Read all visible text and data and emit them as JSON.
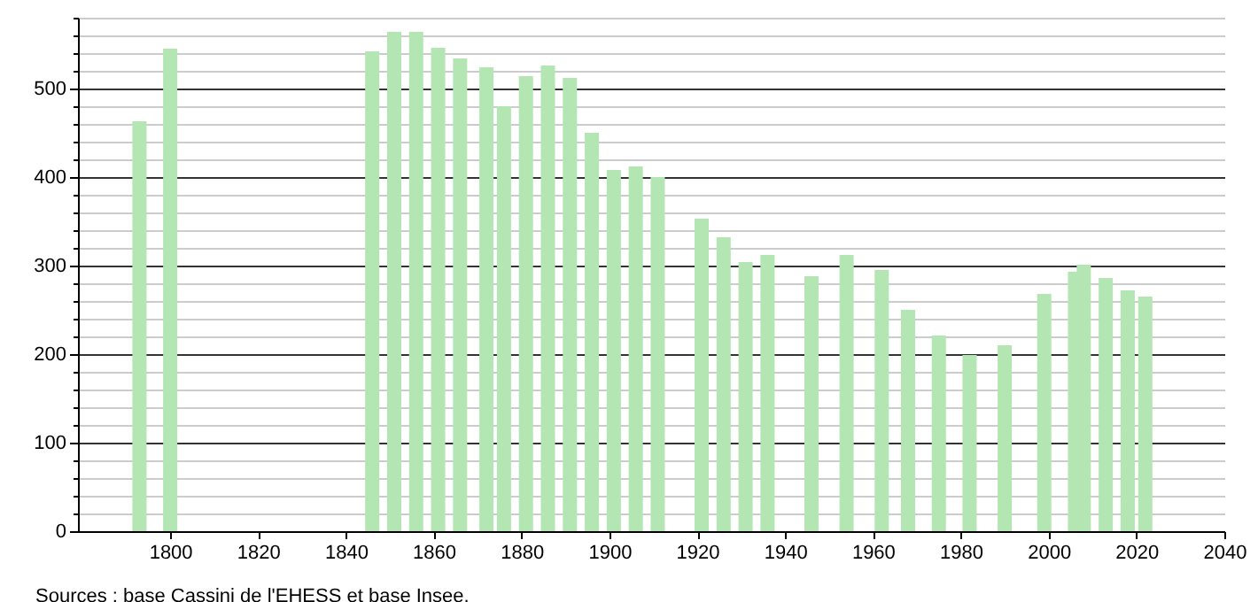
{
  "chart_data": {
    "type": "bar",
    "x": [
      1793,
      1800,
      1846,
      1851,
      1856,
      1861,
      1866,
      1872,
      1876,
      1881,
      1886,
      1891,
      1896,
      1901,
      1906,
      1911,
      1921,
      1926,
      1931,
      1936,
      1946,
      1954,
      1962,
      1968,
      1975,
      1982,
      1990,
      1999,
      2006,
      2008,
      2013,
      2018,
      2022
    ],
    "values": [
      463,
      545,
      542,
      564,
      564,
      546,
      534,
      524,
      480,
      514,
      526,
      512,
      450,
      408,
      412,
      400,
      353,
      332,
      304,
      312,
      288,
      312,
      295,
      250,
      221,
      199,
      210,
      268,
      293,
      301,
      286,
      272,
      265
    ],
    "color": "#b3e6b3",
    "xlim": [
      1779,
      2040
    ],
    "xticks": [
      1800,
      1820,
      1840,
      1860,
      1880,
      1900,
      1920,
      1940,
      1960,
      1980,
      2000,
      2020,
      2040
    ],
    "ylim": [
      0,
      580
    ],
    "yticks": [
      0,
      {
        "value": 20,
        "label": null
      },
      {
        "value": 40,
        "label": null
      },
      {
        "value": 60,
        "label": null
      },
      {
        "value": 80,
        "label": null
      },
      100,
      {
        "value": 120,
        "label": null
      },
      {
        "value": 140,
        "label": null
      },
      {
        "value": 160,
        "label": null
      },
      {
        "value": 180,
        "label": null
      },
      200,
      {
        "value": 220,
        "label": null
      },
      {
        "value": 240,
        "label": null
      },
      {
        "value": 260,
        "label": null
      },
      {
        "value": 280,
        "label": null
      },
      300,
      {
        "value": 320,
        "label": null
      },
      {
        "value": 340,
        "label": null
      },
      {
        "value": 360,
        "label": null
      },
      {
        "value": 380,
        "label": null
      },
      400,
      {
        "value": 420,
        "label": null
      },
      {
        "value": 440,
        "label": null
      },
      {
        "value": 460,
        "label": null
      },
      {
        "value": 480,
        "label": null
      },
      500,
      {
        "value": 520,
        "label": null
      },
      {
        "value": 540,
        "label": null
      },
      {
        "value": 560,
        "label": null
      },
      {
        "value": 580,
        "label": null
      }
    ],
    "grid": "y",
    "annotations": [
      "Sources : base Cassini de l'EHESS et base Insee."
    ]
  }
}
